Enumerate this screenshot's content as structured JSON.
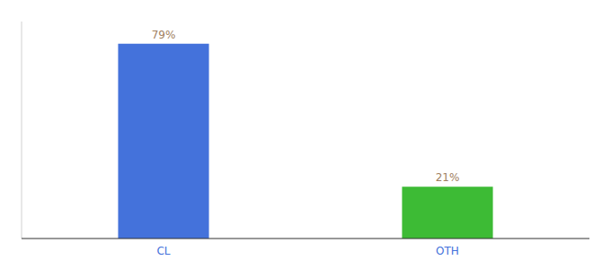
{
  "chart_data": {
    "type": "bar",
    "categories": [
      "CL",
      "OTH"
    ],
    "values": [
      79,
      21
    ],
    "value_labels": [
      "79%",
      "21%"
    ],
    "colors": [
      "#4472db",
      "#3dbb35"
    ],
    "ylim": [
      0,
      88
    ],
    "data_labels": true,
    "tick_labels": "x",
    "grid": false
  }
}
